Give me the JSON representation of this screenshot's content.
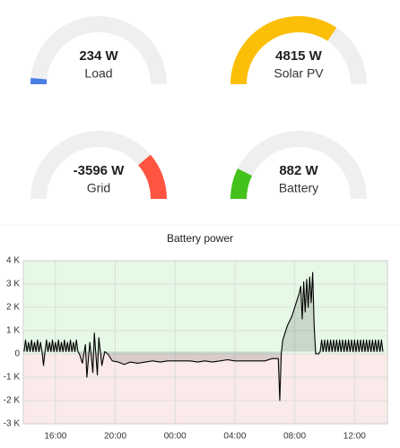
{
  "gauges": [
    {
      "label": "Load",
      "value": 234,
      "value_label": "234 W",
      "min": 0,
      "max": 8000,
      "color": "#4a7ee6"
    },
    {
      "label": "Solar PV",
      "value": 4815,
      "value_label": "4815 W",
      "min": 0,
      "max": 7000,
      "color": "#fcbf07"
    },
    {
      "label": "Grid",
      "value": -3596,
      "value_label": "-3596 W",
      "min": -16000,
      "max": 0,
      "color": "#ff5540"
    },
    {
      "label": "Battery",
      "value": 882,
      "value_label": "882 W",
      "min": 0,
      "max": 6000,
      "color": "#44c21c"
    }
  ],
  "chart_data": {
    "type": "line",
    "title": "Battery power",
    "x": [
      13.9,
      14.0,
      14.1,
      14.2,
      14.3,
      14.4,
      14.5,
      14.6,
      14.7,
      14.8,
      14.9,
      15.0,
      15.1,
      15.2,
      15.3,
      15.4,
      15.5,
      15.6,
      15.7,
      15.8,
      15.9,
      16.0,
      16.1,
      16.2,
      16.3,
      16.4,
      16.5,
      16.6,
      16.7,
      16.8,
      16.9,
      17.0,
      17.1,
      17.2,
      17.3,
      17.4,
      17.5,
      17.6,
      17.8,
      18.0,
      18.1,
      18.3,
      18.5,
      18.6,
      18.8,
      18.9,
      19.1,
      19.3,
      19.5,
      19.8,
      20.2,
      20.6,
      21.0,
      21.5,
      22,
      22.5,
      23,
      23.5,
      24,
      24.5,
      25,
      25.5,
      26,
      26.5,
      27,
      27.5,
      28,
      28.5,
      29,
      29.5,
      30,
      30.5,
      30.9,
      31.0,
      31.1,
      31.2,
      31.5,
      31.8,
      32.1,
      32.3,
      32.4,
      32.5,
      32.6,
      32.7,
      32.8,
      32.9,
      33.0,
      33.1,
      33.2,
      33.3,
      33.4,
      33.6,
      33.7,
      33.8,
      33.9,
      34.0,
      34.1,
      34.2,
      34.3,
      34.4,
      34.5,
      34.6,
      34.7,
      34.8,
      34.9,
      35.0,
      35.1,
      35.2,
      35.3,
      35.4,
      35.5,
      35.6,
      35.7,
      35.8,
      35.9,
      36.0,
      36.1,
      36.2,
      36.3,
      36.4,
      36.5,
      36.6,
      36.7,
      36.8,
      36.9,
      37.0,
      37.1,
      37.2,
      37.3,
      37.4,
      37.5,
      37.6,
      37.7,
      37.8,
      37.9
    ],
    "series": [
      {
        "color": "#000000",
        "values": [
          0.1,
          0.6,
          0.1,
          0.5,
          0.1,
          0.6,
          0.1,
          0.5,
          0.1,
          0.6,
          0.1,
          0.5,
          0.1,
          -0.5,
          0.1,
          0.6,
          0.1,
          0.5,
          0.1,
          0.6,
          0.1,
          0.5,
          0.1,
          0.6,
          0.1,
          0.5,
          0.1,
          0.6,
          0.1,
          0.5,
          0.1,
          0.6,
          0.1,
          0.5,
          0.1,
          0.6,
          0.1,
          0,
          -0.4,
          0.4,
          -1.0,
          0.5,
          -0.8,
          0.9,
          -0.9,
          0.7,
          -0.5,
          0.1,
          0,
          -0.3,
          -0.35,
          -0.45,
          -0.35,
          -0.4,
          -0.35,
          -0.3,
          -0.35,
          -0.3,
          -0.3,
          -0.3,
          -0.3,
          -0.35,
          -0.3,
          -0.35,
          -0.3,
          -0.25,
          -0.3,
          -0.3,
          -0.3,
          -0.3,
          -0.3,
          -0.2,
          -0.2,
          -2.0,
          0,
          0.6,
          1.2,
          1.6,
          2.2,
          2.6,
          2.9,
          1.5,
          3.1,
          1.8,
          3.2,
          2.0,
          3.3,
          2.2,
          3.5,
          1.2,
          0,
          0,
          0.1,
          0.6,
          0.1,
          0.6,
          0.1,
          0.6,
          0.1,
          0.6,
          0.1,
          0.6,
          0.1,
          0.6,
          0.1,
          0.6,
          0.1,
          0.6,
          0.1,
          0.6,
          0.1,
          0.6,
          0.1,
          0.6,
          0.1,
          0.6,
          0.1,
          0.6,
          0.1,
          0.6,
          0.1,
          0.6,
          0.1,
          0.6,
          0.1,
          0.6,
          0.1,
          0.6,
          0.1,
          0.6,
          0.1,
          0.6,
          0.1,
          0.6,
          0.1
        ]
      }
    ],
    "xlim": [
      13.85,
      38.2
    ],
    "xticks": [
      {
        "value": 16,
        "label": "16:00"
      },
      {
        "value": 20,
        "label": "20:00"
      },
      {
        "value": 24,
        "label": "00:00"
      },
      {
        "value": 28,
        "label": "04:00"
      },
      {
        "value": 32,
        "label": "08:00"
      },
      {
        "value": 36,
        "label": "12:00"
      }
    ],
    "ylim": [
      -3,
      4
    ],
    "yticks": [
      {
        "value": 4,
        "label": "4 K"
      },
      {
        "value": 3,
        "label": "3 K"
      },
      {
        "value": 2,
        "label": "2 K"
      },
      {
        "value": 1,
        "label": "1 K"
      },
      {
        "value": 0,
        "label": "0"
      },
      {
        "value": -1,
        "label": "-1 K"
      },
      {
        "value": -2,
        "label": "-2 K"
      },
      {
        "value": -3,
        "label": "-3 K"
      }
    ],
    "grid": true
  }
}
